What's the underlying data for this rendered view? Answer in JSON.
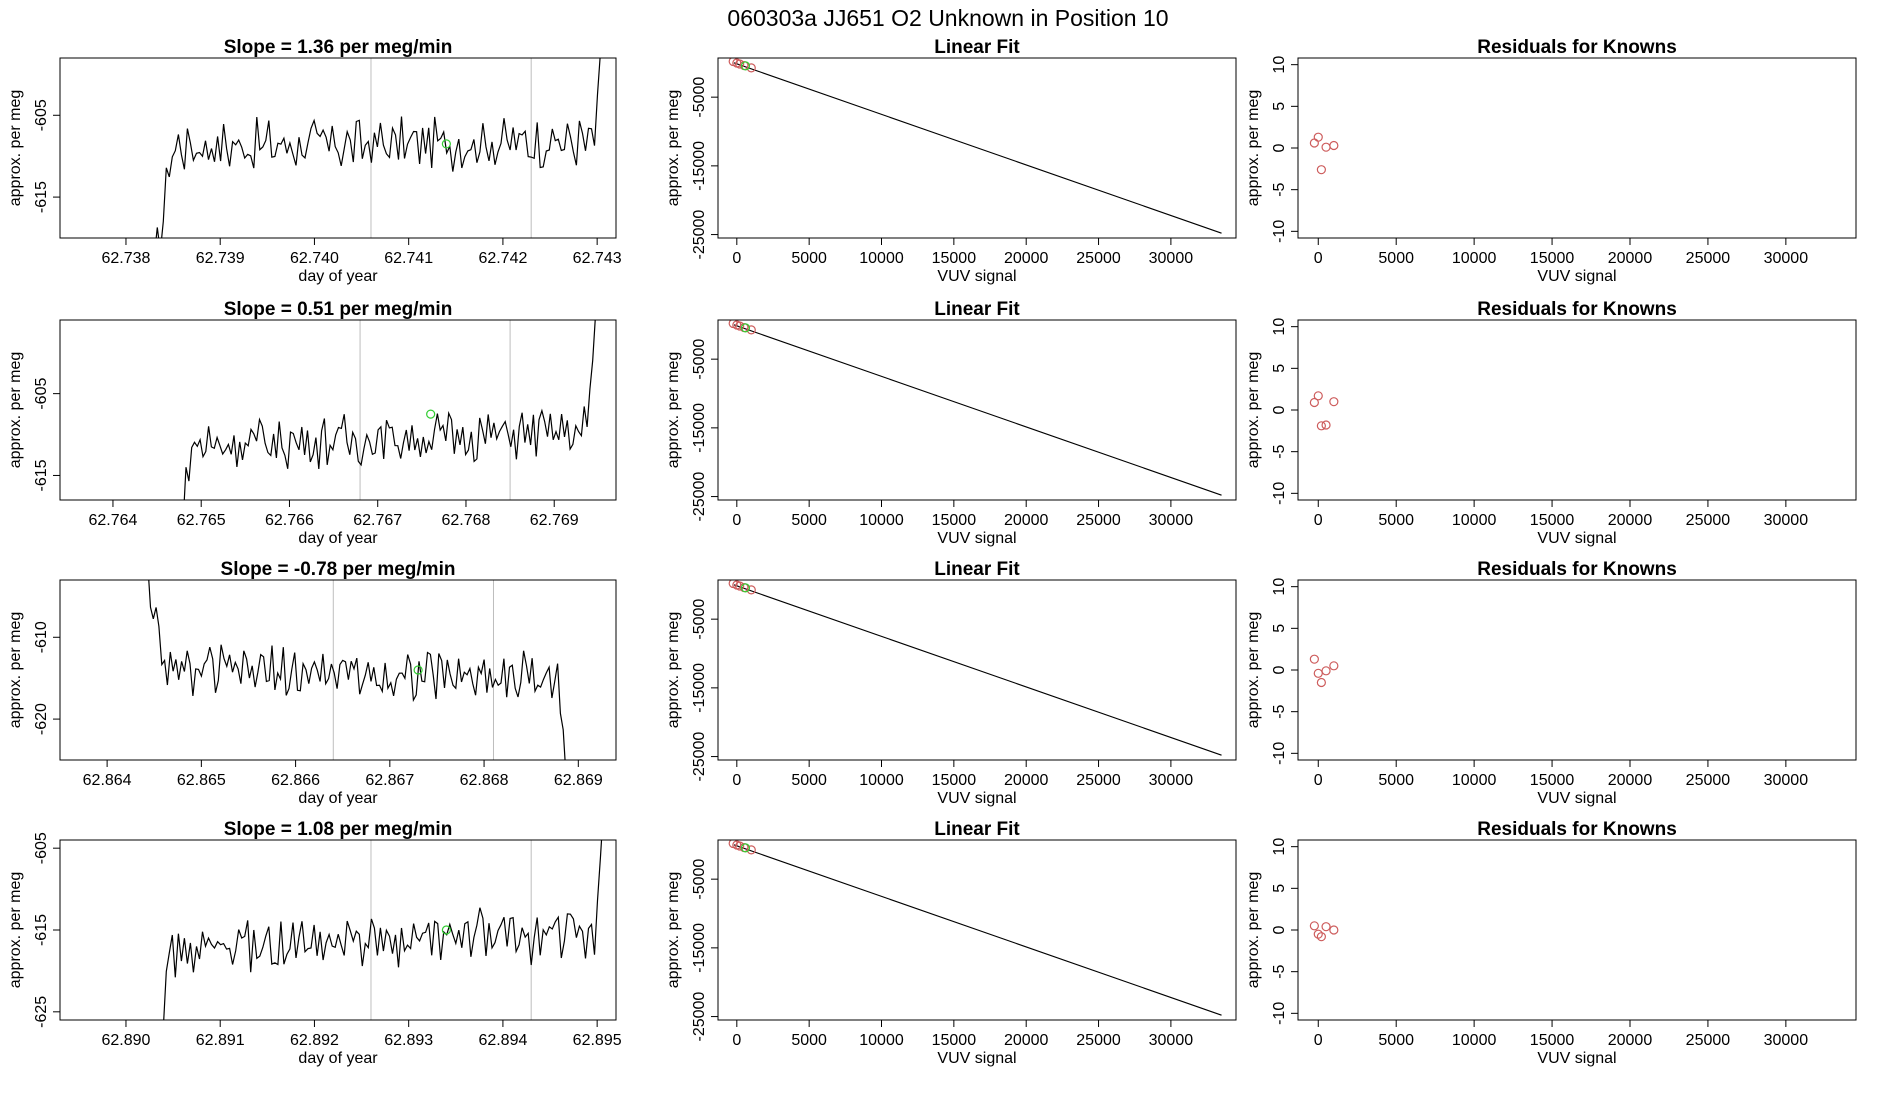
{
  "figure": {
    "title": "060303a      JJ651    O2 Unknown in Position  10"
  },
  "colors": {
    "line": "#000000",
    "vline": "#bebebe",
    "known_point": "#cd5c5c",
    "unknown_point": "#32cd32"
  },
  "chart_data": [
    {
      "type": "line",
      "panel": "time-1",
      "title": "Slope =  1.36  per meg/min",
      "xlabel": "day of year",
      "ylabel": "approx. per meg",
      "xlim": [
        62.7373,
        62.7432
      ],
      "ylim": [
        -620.0,
        -598.0
      ],
      "xticks": [
        62.738,
        62.739,
        62.74,
        62.741,
        62.742,
        62.743
      ],
      "xtick_labels": [
        "62.738",
        "62.739",
        "62.740",
        "62.741",
        "62.742",
        "62.743"
      ],
      "yticks": [
        -605,
        -615
      ],
      "ytick_labels": [
        "-605",
        "-615"
      ],
      "start": 62.7383,
      "end": 62.7431,
      "base": -608.5,
      "slope": 0.3,
      "spread": 2.6,
      "vlines": [
        62.7406,
        62.7423
      ],
      "unknown_point": {
        "x": 62.7414,
        "y": -608.5
      }
    },
    {
      "type": "scatter",
      "panel": "fit-1",
      "title": "Linear Fit",
      "xlabel": "VUV signal",
      "ylabel": "approx. per meg",
      "xlim": [
        -1300,
        34500
      ],
      "ylim": [
        -25500,
        700
      ],
      "xticks": [
        0,
        5000,
        10000,
        15000,
        20000,
        25000,
        30000
      ],
      "xtick_labels": [
        "0",
        "5000",
        "10000",
        "15000",
        "20000",
        "25000",
        "30000"
      ],
      "yticks": [
        -5000,
        -15000,
        -25000
      ],
      "ytick_labels": [
        "-5000",
        "-15000",
        "-25000"
      ],
      "fit_line": {
        "x": [
          -200,
          33500
        ],
        "y": [
          0,
          -24800
        ]
      },
      "knowns": {
        "x": [
          -250,
          0,
          200,
          500,
          1000
        ],
        "y": [
          200,
          -30,
          -170,
          -400,
          -740
        ]
      },
      "unknown": {
        "x": [
          600
        ],
        "y": [
          -450
        ]
      }
    },
    {
      "type": "scatter",
      "panel": "resid-1",
      "title": "Residuals for Knowns",
      "xlabel": "VUV signal",
      "ylabel": "approx. per meg",
      "xlim": [
        -1300,
        34500
      ],
      "ylim": [
        -10.8,
        10.8
      ],
      "xticks": [
        0,
        5000,
        10000,
        15000,
        20000,
        25000,
        30000
      ],
      "xtick_labels": [
        "0",
        "5000",
        "10000",
        "15000",
        "20000",
        "25000",
        "30000"
      ],
      "yticks": [
        10,
        5,
        0,
        -5,
        -10
      ],
      "ytick_labels": [
        "10",
        "5",
        "0",
        "-5",
        "-10"
      ],
      "x": [
        -250,
        0,
        200,
        500,
        1000
      ],
      "y": [
        0.6,
        1.3,
        -2.6,
        0.1,
        0.3
      ]
    },
    {
      "type": "line",
      "panel": "time-2",
      "title": "Slope =  0.51  per meg/min",
      "xlabel": "day of year",
      "ylabel": "approx. per meg",
      "xlim": [
        62.7634,
        62.7697
      ],
      "ylim": [
        -618.0,
        -596.0
      ],
      "xticks": [
        62.764,
        62.765,
        62.766,
        62.767,
        62.768,
        62.769
      ],
      "xtick_labels": [
        "62.764",
        "62.765",
        "62.766",
        "62.767",
        "62.768",
        "62.769"
      ],
      "yticks": [
        -605,
        -615
      ],
      "ytick_labels": [
        "-605",
        "-615"
      ],
      "start": 62.7647,
      "end": 62.7695,
      "base": -610.5,
      "slope": 0.9,
      "spread": 2.6,
      "vlines": [
        62.7668,
        62.7685
      ],
      "unknown_point": {
        "x": 62.7676,
        "y": -607.5
      }
    },
    {
      "type": "scatter",
      "panel": "fit-2",
      "title": "Linear Fit",
      "xlabel": "VUV signal",
      "ylabel": "approx. per meg",
      "xlim": [
        -1300,
        34500
      ],
      "ylim": [
        -25500,
        700
      ],
      "xticks": [
        0,
        5000,
        10000,
        15000,
        20000,
        25000,
        30000
      ],
      "xtick_labels": [
        "0",
        "5000",
        "10000",
        "15000",
        "20000",
        "25000",
        "30000"
      ],
      "yticks": [
        -5000,
        -15000,
        -25000
      ],
      "ytick_labels": [
        "-5000",
        "-15000",
        "-25000"
      ],
      "fit_line": {
        "x": [
          -200,
          33500
        ],
        "y": [
          0,
          -24800
        ]
      },
      "knowns": {
        "x": [
          -250,
          0,
          200,
          500,
          1000
        ],
        "y": [
          200,
          -30,
          -170,
          -400,
          -740
        ]
      },
      "unknown": {
        "x": [
          600
        ],
        "y": [
          -450
        ]
      }
    },
    {
      "type": "scatter",
      "panel": "resid-2",
      "title": "Residuals for Knowns",
      "xlabel": "VUV signal",
      "ylabel": "approx. per meg",
      "xlim": [
        -1300,
        34500
      ],
      "ylim": [
        -10.8,
        10.8
      ],
      "xticks": [
        0,
        5000,
        10000,
        15000,
        20000,
        25000,
        30000
      ],
      "xtick_labels": [
        "0",
        "5000",
        "10000",
        "15000",
        "20000",
        "25000",
        "30000"
      ],
      "yticks": [
        10,
        5,
        0,
        -5,
        -10
      ],
      "ytick_labels": [
        "10",
        "5",
        "0",
        "-5",
        "-10"
      ],
      "x": [
        -250,
        0,
        200,
        500,
        1000
      ],
      "y": [
        0.9,
        1.7,
        -1.9,
        -1.8,
        1.0
      ]
    },
    {
      "type": "line",
      "panel": "time-3",
      "title": "Slope =  -0.78  per meg/min",
      "xlabel": "day of year",
      "ylabel": "approx. per meg",
      "xlim": [
        62.8635,
        62.8694
      ],
      "ylim": [
        -625.0,
        -603.0
      ],
      "xticks": [
        62.864,
        62.865,
        62.866,
        62.867,
        62.868,
        62.869
      ],
      "xtick_labels": [
        "62.864",
        "62.865",
        "62.866",
        "62.867",
        "62.868",
        "62.869"
      ],
      "yticks": [
        -610,
        -620
      ],
      "ytick_labels": [
        "-610",
        "-620"
      ],
      "start": 62.8644,
      "end": 62.8689,
      "base": -614.5,
      "slope": -0.4,
      "spread": 2.6,
      "vlines": [
        62.8664,
        62.8681
      ],
      "unknown_point": {
        "x": 62.8673,
        "y": -614.0
      }
    },
    {
      "type": "scatter",
      "panel": "fit-3",
      "title": "Linear Fit",
      "xlabel": "VUV signal",
      "ylabel": "approx. per meg",
      "xlim": [
        -1300,
        34500
      ],
      "ylim": [
        -25500,
        700
      ],
      "xticks": [
        0,
        5000,
        10000,
        15000,
        20000,
        25000,
        30000
      ],
      "xtick_labels": [
        "0",
        "5000",
        "10000",
        "15000",
        "20000",
        "25000",
        "30000"
      ],
      "yticks": [
        -5000,
        -15000,
        -25000
      ],
      "ytick_labels": [
        "-5000",
        "-15000",
        "-25000"
      ],
      "fit_line": {
        "x": [
          -200,
          33500
        ],
        "y": [
          0,
          -24800
        ]
      },
      "knowns": {
        "x": [
          -250,
          0,
          200,
          500,
          1000
        ],
        "y": [
          200,
          -30,
          -170,
          -400,
          -740
        ]
      },
      "unknown": {
        "x": [
          600
        ],
        "y": [
          -450
        ]
      }
    },
    {
      "type": "scatter",
      "panel": "resid-3",
      "title": "Residuals for Knowns",
      "xlabel": "VUV signal",
      "ylabel": "approx. per meg",
      "xlim": [
        -1300,
        34500
      ],
      "ylim": [
        -10.8,
        10.8
      ],
      "xticks": [
        0,
        5000,
        10000,
        15000,
        20000,
        25000,
        30000
      ],
      "xtick_labels": [
        "0",
        "5000",
        "10000",
        "15000",
        "20000",
        "25000",
        "30000"
      ],
      "yticks": [
        10,
        5,
        0,
        -5,
        -10
      ],
      "ytick_labels": [
        "10",
        "5",
        "0",
        "-5",
        "-10"
      ],
      "x": [
        -250,
        0,
        200,
        500,
        1000
      ],
      "y": [
        1.3,
        -0.4,
        -1.5,
        -0.1,
        0.5
      ]
    },
    {
      "type": "line",
      "panel": "time-4",
      "title": "Slope =  1.08  per meg/min",
      "xlabel": "day of year",
      "ylabel": "approx. per meg",
      "xlim": [
        62.8893,
        62.8952
      ],
      "ylim": [
        -626.0,
        -604.0
      ],
      "xticks": [
        62.89,
        62.891,
        62.892,
        62.893,
        62.894,
        62.895
      ],
      "xtick_labels": [
        "62.890",
        "62.891",
        "62.892",
        "62.893",
        "62.894",
        "62.895"
      ],
      "yticks": [
        -605,
        -615,
        -625
      ],
      "ytick_labels": [
        "-605",
        "-615",
        "-625"
      ],
      "start": 62.8903,
      "end": 62.8951,
      "base": -616.5,
      "slope": 1.2,
      "spread": 2.8,
      "vlines": [
        62.8926,
        62.8943
      ],
      "unknown_point": {
        "x": 62.8934,
        "y": -615.0
      }
    },
    {
      "type": "scatter",
      "panel": "fit-4",
      "title": "Linear Fit",
      "xlabel": "VUV signal",
      "ylabel": "approx. per meg",
      "xlim": [
        -1300,
        34500
      ],
      "ylim": [
        -25500,
        700
      ],
      "xticks": [
        0,
        5000,
        10000,
        15000,
        20000,
        25000,
        30000
      ],
      "xtick_labels": [
        "0",
        "5000",
        "10000",
        "15000",
        "20000",
        "25000",
        "30000"
      ],
      "yticks": [
        -5000,
        -15000,
        -25000
      ],
      "ytick_labels": [
        "-5000",
        "-15000",
        "-25000"
      ],
      "fit_line": {
        "x": [
          -200,
          33500
        ],
        "y": [
          0,
          -24800
        ]
      },
      "knowns": {
        "x": [
          -250,
          0,
          200,
          500,
          1000
        ],
        "y": [
          200,
          -30,
          -170,
          -400,
          -740
        ]
      },
      "unknown": {
        "x": [
          600
        ],
        "y": [
          -450
        ]
      }
    },
    {
      "type": "scatter",
      "panel": "resid-4",
      "title": "Residuals for Knowns",
      "xlabel": "VUV signal",
      "ylabel": "approx. per meg",
      "xlim": [
        -1300,
        34500
      ],
      "ylim": [
        -10.8,
        10.8
      ],
      "xticks": [
        0,
        5000,
        10000,
        15000,
        20000,
        25000,
        30000
      ],
      "xtick_labels": [
        "0",
        "5000",
        "10000",
        "15000",
        "20000",
        "25000",
        "30000"
      ],
      "yticks": [
        10,
        5,
        0,
        -5,
        -10
      ],
      "ytick_labels": [
        "10",
        "5",
        "0",
        "-5",
        "-10"
      ],
      "x": [
        -250,
        0,
        200,
        500,
        1000
      ],
      "y": [
        0.5,
        -0.5,
        -0.8,
        0.4,
        0.0
      ]
    }
  ]
}
